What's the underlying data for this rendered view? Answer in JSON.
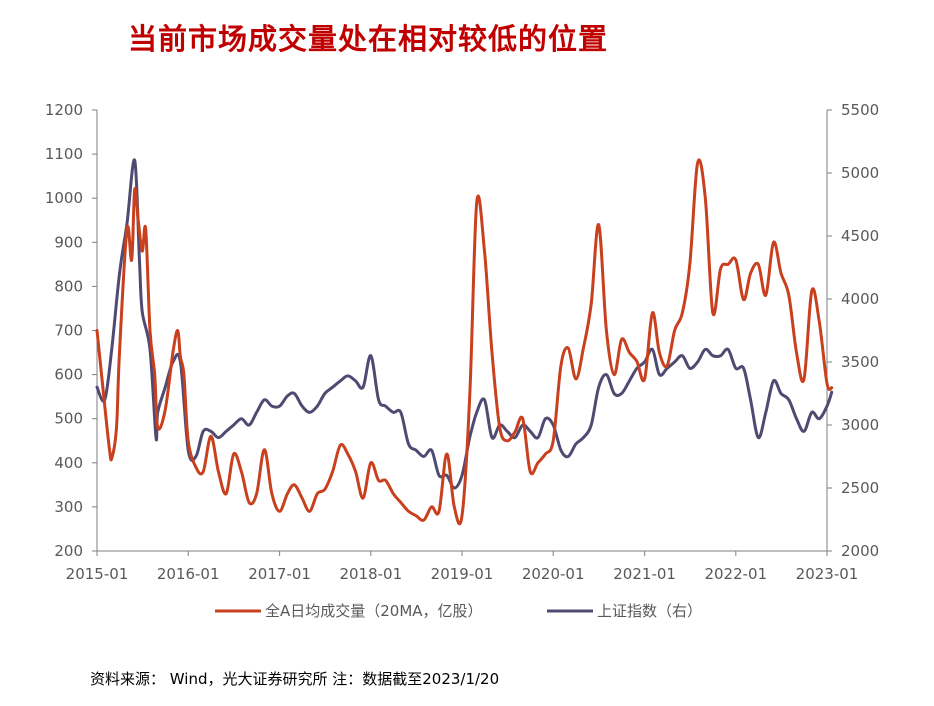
{
  "title": "当前市场成交量处在相对较低的位置",
  "source": "资料来源： Wind，光大证券研究所 注：数据截至2023/1/20",
  "colors": {
    "volume": "#c8401d",
    "index": "#4e4a72",
    "axis": "#7f7f7f",
    "title": "#c00000"
  },
  "chart_data": {
    "type": "line",
    "x_ticks": [
      "2015-01",
      "2016-01",
      "2017-01",
      "2018-01",
      "2019-01",
      "2020-01",
      "2021-01",
      "2022-01",
      "2023-01"
    ],
    "y_left": {
      "ylim": [
        200,
        1200
      ],
      "ticks": [
        200,
        300,
        400,
        500,
        600,
        700,
        800,
        900,
        1000,
        1100,
        1200
      ]
    },
    "y_right": {
      "ylim": [
        2000,
        5500
      ],
      "ticks": [
        2000,
        2500,
        3000,
        3500,
        4000,
        4500,
        5000,
        5500
      ]
    },
    "series": [
      {
        "name": "全A日均成交量（20MA，亿股）",
        "axis": "left",
        "points": [
          [
            "2015-01",
            700
          ],
          [
            "2015-02",
            530
          ],
          [
            "2015-02-20",
            430
          ],
          [
            "2015-03",
            410
          ],
          [
            "2015-03-20",
            480
          ],
          [
            "2015-04",
            650
          ],
          [
            "2015-05",
            930
          ],
          [
            "2015-05-20",
            860
          ],
          [
            "2015-06",
            1020
          ],
          [
            "2015-06-15",
            950
          ],
          [
            "2015-07",
            880
          ],
          [
            "2015-07-15",
            930
          ],
          [
            "2015-08",
            700
          ],
          [
            "2015-08-20",
            600
          ],
          [
            "2015-09",
            480
          ],
          [
            "2015-10",
            520
          ],
          [
            "2015-11",
            650
          ],
          [
            "2015-11-20",
            700
          ],
          [
            "2015-12",
            640
          ],
          [
            "2015-12-15",
            600
          ],
          [
            "2016-01",
            450
          ],
          [
            "2016-02",
            390
          ],
          [
            "2016-03",
            380
          ],
          [
            "2016-04",
            460
          ],
          [
            "2016-05",
            380
          ],
          [
            "2016-06",
            330
          ],
          [
            "2016-07",
            420
          ],
          [
            "2016-08",
            380
          ],
          [
            "2016-09",
            310
          ],
          [
            "2016-10",
            330
          ],
          [
            "2016-11",
            430
          ],
          [
            "2016-12",
            330
          ],
          [
            "2017-01",
            290
          ],
          [
            "2017-02",
            330
          ],
          [
            "2017-03",
            350
          ],
          [
            "2017-04",
            320
          ],
          [
            "2017-05",
            290
          ],
          [
            "2017-06",
            330
          ],
          [
            "2017-07",
            340
          ],
          [
            "2017-08",
            380
          ],
          [
            "2017-09",
            440
          ],
          [
            "2017-10",
            420
          ],
          [
            "2017-11",
            380
          ],
          [
            "2017-12",
            320
          ],
          [
            "2018-01",
            400
          ],
          [
            "2018-02",
            360
          ],
          [
            "2018-03",
            360
          ],
          [
            "2018-04",
            330
          ],
          [
            "2018-05",
            310
          ],
          [
            "2018-06",
            290
          ],
          [
            "2018-07",
            280
          ],
          [
            "2018-08",
            270
          ],
          [
            "2018-09",
            300
          ],
          [
            "2018-10",
            290
          ],
          [
            "2018-11",
            420
          ],
          [
            "2018-12",
            300
          ],
          [
            "2019-01",
            280
          ],
          [
            "2019-02",
            550
          ],
          [
            "2019-03",
            990
          ],
          [
            "2019-04",
            880
          ],
          [
            "2019-05",
            650
          ],
          [
            "2019-06",
            480
          ],
          [
            "2019-07",
            450
          ],
          [
            "2019-08",
            470
          ],
          [
            "2019-09",
            500
          ],
          [
            "2019-10",
            380
          ],
          [
            "2019-11",
            400
          ],
          [
            "2019-12",
            420
          ],
          [
            "2020-01",
            450
          ],
          [
            "2020-02",
            620
          ],
          [
            "2020-03",
            660
          ],
          [
            "2020-04",
            590
          ],
          [
            "2020-05",
            660
          ],
          [
            "2020-06",
            760
          ],
          [
            "2020-07",
            940
          ],
          [
            "2020-08",
            700
          ],
          [
            "2020-09",
            600
          ],
          [
            "2020-10",
            680
          ],
          [
            "2020-11",
            650
          ],
          [
            "2020-12",
            630
          ],
          [
            "2021-01",
            590
          ],
          [
            "2021-02",
            740
          ],
          [
            "2021-03",
            650
          ],
          [
            "2021-04",
            620
          ],
          [
            "2021-05",
            700
          ],
          [
            "2021-06",
            740
          ],
          [
            "2021-07",
            850
          ],
          [
            "2021-08",
            1080
          ],
          [
            "2021-09",
            1000
          ],
          [
            "2021-10",
            740
          ],
          [
            "2021-11",
            840
          ],
          [
            "2021-12",
            850
          ],
          [
            "2022-01",
            860
          ],
          [
            "2022-02",
            770
          ],
          [
            "2022-03",
            830
          ],
          [
            "2022-04",
            850
          ],
          [
            "2022-05",
            780
          ],
          [
            "2022-06",
            900
          ],
          [
            "2022-07",
            830
          ],
          [
            "2022-08",
            780
          ],
          [
            "2022-09",
            650
          ],
          [
            "2022-10",
            590
          ],
          [
            "2022-11",
            790
          ],
          [
            "2022-12",
            720
          ],
          [
            "2023-01",
            580
          ],
          [
            "2023-01-20",
            570
          ]
        ]
      },
      {
        "name": "上证指数（右）",
        "axis": "right",
        "points": [
          [
            "2015-01",
            3300
          ],
          [
            "2015-02",
            3200
          ],
          [
            "2015-03",
            3600
          ],
          [
            "2015-04",
            4200
          ],
          [
            "2015-05",
            4600
          ],
          [
            "2015-06",
            5100
          ],
          [
            "2015-06-20",
            4300
          ],
          [
            "2015-07",
            3900
          ],
          [
            "2015-08",
            3600
          ],
          [
            "2015-08-25",
            2900
          ],
          [
            "2015-09",
            3100
          ],
          [
            "2015-10",
            3300
          ],
          [
            "2015-11",
            3500
          ],
          [
            "2015-12",
            3500
          ],
          [
            "2016-01",
            2800
          ],
          [
            "2016-02",
            2750
          ],
          [
            "2016-03",
            2950
          ],
          [
            "2016-04",
            2950
          ],
          [
            "2016-05",
            2900
          ],
          [
            "2016-06",
            2950
          ],
          [
            "2016-07",
            3000
          ],
          [
            "2016-08",
            3050
          ],
          [
            "2016-09",
            3000
          ],
          [
            "2016-10",
            3100
          ],
          [
            "2016-11",
            3200
          ],
          [
            "2016-12",
            3150
          ],
          [
            "2017-01",
            3150
          ],
          [
            "2017-02",
            3230
          ],
          [
            "2017-03",
            3250
          ],
          [
            "2017-04",
            3150
          ],
          [
            "2017-05",
            3100
          ],
          [
            "2017-06",
            3150
          ],
          [
            "2017-07",
            3250
          ],
          [
            "2017-08",
            3300
          ],
          [
            "2017-09",
            3350
          ],
          [
            "2017-10",
            3390
          ],
          [
            "2017-11",
            3350
          ],
          [
            "2017-12",
            3300
          ],
          [
            "2018-01",
            3550
          ],
          [
            "2018-02",
            3200
          ],
          [
            "2018-03",
            3150
          ],
          [
            "2018-04",
            3100
          ],
          [
            "2018-05",
            3100
          ],
          [
            "2018-06",
            2850
          ],
          [
            "2018-07",
            2800
          ],
          [
            "2018-08",
            2750
          ],
          [
            "2018-09",
            2800
          ],
          [
            "2018-10",
            2600
          ],
          [
            "2018-11",
            2600
          ],
          [
            "2018-12",
            2500
          ],
          [
            "2019-01",
            2600
          ],
          [
            "2019-02",
            2900
          ],
          [
            "2019-03",
            3100
          ],
          [
            "2019-04",
            3200
          ],
          [
            "2019-05",
            2900
          ],
          [
            "2019-06",
            3000
          ],
          [
            "2019-07",
            2950
          ],
          [
            "2019-08",
            2900
          ],
          [
            "2019-09",
            3000
          ],
          [
            "2019-10",
            2950
          ],
          [
            "2019-11",
            2900
          ],
          [
            "2019-12",
            3050
          ],
          [
            "2020-01",
            3000
          ],
          [
            "2020-02",
            2800
          ],
          [
            "2020-03",
            2750
          ],
          [
            "2020-04",
            2850
          ],
          [
            "2020-05",
            2900
          ],
          [
            "2020-06",
            3000
          ],
          [
            "2020-07",
            3300
          ],
          [
            "2020-08",
            3400
          ],
          [
            "2020-09",
            3250
          ],
          [
            "2020-10",
            3250
          ],
          [
            "2020-11",
            3350
          ],
          [
            "2020-12",
            3450
          ],
          [
            "2021-01",
            3500
          ],
          [
            "2021-02",
            3600
          ],
          [
            "2021-03",
            3400
          ],
          [
            "2021-04",
            3450
          ],
          [
            "2021-05",
            3500
          ],
          [
            "2021-06",
            3550
          ],
          [
            "2021-07",
            3450
          ],
          [
            "2021-08",
            3500
          ],
          [
            "2021-09",
            3600
          ],
          [
            "2021-10",
            3550
          ],
          [
            "2021-11",
            3550
          ],
          [
            "2021-12",
            3600
          ],
          [
            "2022-01",
            3450
          ],
          [
            "2022-02",
            3450
          ],
          [
            "2022-03",
            3200
          ],
          [
            "2022-04",
            2900
          ],
          [
            "2022-05",
            3100
          ],
          [
            "2022-06",
            3350
          ],
          [
            "2022-07",
            3250
          ],
          [
            "2022-08",
            3200
          ],
          [
            "2022-09",
            3050
          ],
          [
            "2022-10",
            2950
          ],
          [
            "2022-11",
            3100
          ],
          [
            "2022-12",
            3050
          ],
          [
            "2023-01",
            3150
          ],
          [
            "2023-01-20",
            3260
          ]
        ]
      }
    ],
    "grid": false,
    "legend_position": "bottom"
  }
}
